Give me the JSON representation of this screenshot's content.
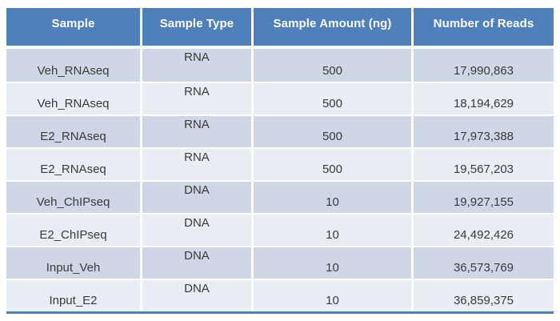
{
  "colors": {
    "page_bg": "#FFFFFF",
    "header_fill": "#4E80BC",
    "header_text": "#FFFFFF",
    "band_dark": "#CFD6E5",
    "band_light": "#E9EDF4",
    "body_text": "#3A3A3A",
    "bottom_border": "#4E80BC",
    "separator": "#FFFFFF"
  },
  "chart_data": {
    "type": "table",
    "columns": [
      "Sample",
      "Sample Type",
      "Sample Amount (ng)",
      "Number of Reads"
    ],
    "rows": [
      [
        "Veh_RNAseq",
        "RNA",
        "500",
        "17,990,863"
      ],
      [
        "Veh_RNAseq",
        "RNA",
        "500",
        "18,194,629"
      ],
      [
        "E2_RNAseq",
        "RNA",
        "500",
        "17,973,388"
      ],
      [
        "E2_RNAseq",
        "RNA",
        "500",
        "19,567,203"
      ],
      [
        "Veh_ChIPseq",
        "DNA",
        "10",
        "19,927,155"
      ],
      [
        "E2_ChIPseq",
        "DNA",
        "10",
        "24,492,426"
      ],
      [
        "Input_Veh",
        "DNA",
        "10",
        "36,573,769"
      ],
      [
        "Input_E2",
        "DNA",
        "10",
        "36,859,375"
      ]
    ],
    "layout": {
      "banded_rows": true,
      "header_position": "top",
      "column_alignment": [
        "center",
        "center",
        "center",
        "center"
      ]
    }
  }
}
